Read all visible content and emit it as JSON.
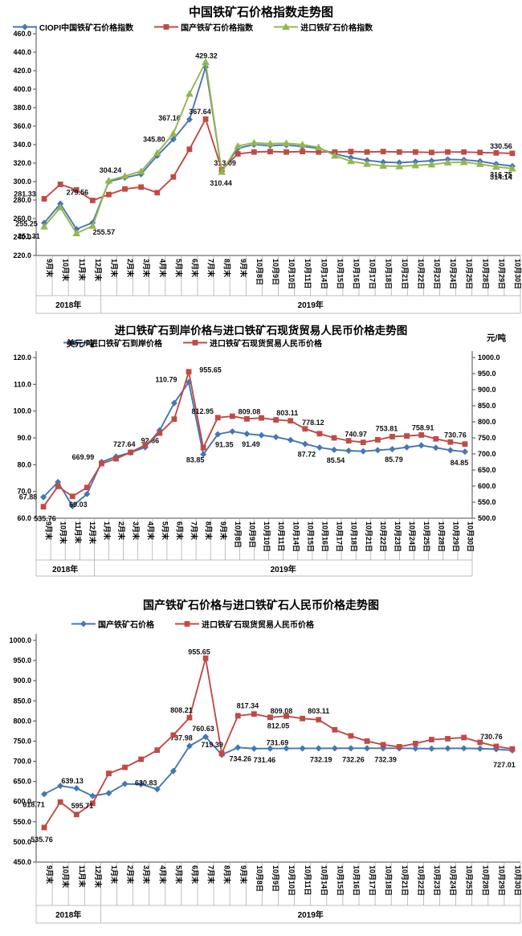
{
  "chart_data": [
    {
      "type": "line",
      "title": "中国铁矿石价格指数走势图",
      "categories": [
        "9月末",
        "10月末",
        "11月末",
        "12月末",
        "1月末",
        "2月末",
        "3月末",
        "4月末",
        "5月末",
        "6月末",
        "7月末",
        "8月末",
        "9月末",
        "10月8日",
        "10月9日",
        "10月10日",
        "10月11日",
        "10月14日",
        "10月15日",
        "10月16日",
        "10月17日",
        "10月18日",
        "10月21日",
        "10月22日",
        "10月23日",
        "10月24日",
        "10月25日",
        "10月28日",
        "10月29日",
        "10月30日"
      ],
      "year_groups": [
        {
          "label": "2018年",
          "count": 4
        },
        {
          "label": "2019年",
          "count": 26
        }
      ],
      "y_axis": {
        "min": 220,
        "max": 460,
        "step": 20
      },
      "grid": false,
      "legend_position": "top",
      "series": [
        {
          "name": "CIOPI中国铁矿石价格指数",
          "color": "#4576B5",
          "marker": "diamond",
          "axis": "left",
          "values": [
            255.25,
            276,
            248.5,
            255.57,
            300,
            304.24,
            308,
            328,
            345.8,
            367.16,
            424,
            311,
            336,
            340,
            339,
            339.5,
            338,
            336,
            330,
            326,
            323,
            321,
            320.5,
            321.5,
            322.5,
            324,
            323.5,
            322,
            319,
            316.75
          ],
          "point_labels": [
            {
              "i": 0,
              "t": "255.25",
              "dx": -22,
              "dy": 1
            },
            {
              "i": 3,
              "t": "255.57",
              "dx": 14,
              "dy": 12
            },
            {
              "i": 5,
              "t": "304.24",
              "dx": -18,
              "dy": -9
            },
            {
              "i": 8,
              "t": "345.80",
              "dx": -24,
              "dy": 0
            },
            {
              "i": 9,
              "t": "367.16",
              "dx": -25,
              "dy": -2
            },
            {
              "i": 29,
              "t": "316.75",
              "dx": -14,
              "dy": 11
            }
          ]
        },
        {
          "name": "国产铁矿石价格指数",
          "color": "#BF4B47",
          "marker": "square",
          "axis": "left",
          "values": [
            281.33,
            297,
            291,
            279.56,
            286,
            292,
            294,
            288,
            305,
            335,
            367.64,
            313.09,
            330,
            332,
            332.5,
            332,
            332.5,
            332,
            332,
            332.5,
            332,
            332.5,
            332,
            332,
            331.5,
            332,
            332,
            331.5,
            331,
            330.56
          ],
          "point_labels": [
            {
              "i": 0,
              "t": "281.33",
              "dx": -24,
              "dy": -6
            },
            {
              "i": 3,
              "t": "279.56",
              "dx": -19,
              "dy": -10
            },
            {
              "i": 10,
              "t": "367.64",
              "dx": -7,
              "dy": -9
            },
            {
              "i": 11,
              "t": "313.09",
              "dx": 4,
              "dy": -8
            },
            {
              "i": 29,
              "t": "330.56",
              "dx": -14,
              "dy": -9
            }
          ]
        },
        {
          "name": "进口铁矿石价格指数",
          "color": "#94B64E",
          "marker": "triangle",
          "axis": "left",
          "values": [
            251.31,
            272,
            244,
            252,
            301,
            306,
            311,
            331,
            352,
            395,
            429.32,
            310.44,
            338.5,
            342,
            341,
            341.5,
            340,
            337,
            328,
            322,
            319,
            317,
            316.5,
            317.5,
            318.5,
            320.5,
            321,
            319,
            316,
            314.14
          ],
          "point_labels": [
            {
              "i": 0,
              "t": "251.31",
              "dx": -19,
              "dy": 12
            },
            {
              "i": 10,
              "t": "429.32",
              "dx": 1,
              "dy": -8
            },
            {
              "i": 11,
              "t": "310.44",
              "dx": -1,
              "dy": 14
            },
            {
              "i": 29,
              "t": "314.14",
              "dx": -14,
              "dy": 11
            }
          ]
        }
      ]
    },
    {
      "type": "line",
      "title": "进口铁矿石到岸价格与进口铁矿石现货贸易人民币价格走势图",
      "left_axis_unit": "美元/吨",
      "right_axis_unit": "元/吨",
      "categories": [
        "9月末",
        "10月末",
        "11月末",
        "12月末",
        "1月末",
        "2月末",
        "3月末",
        "4月末",
        "5月末",
        "6月末",
        "7月末",
        "8月末",
        "9月末",
        "10月8日",
        "10月9日",
        "10月10日",
        "10月11日",
        "10月14日",
        "10月15日",
        "10月16日",
        "10月17日",
        "10月18日",
        "10月21日",
        "10月22日",
        "10月23日",
        "10月24日",
        "10月25日",
        "10月28日",
        "10月29日",
        "10月30日"
      ],
      "year_groups": [
        {
          "label": "2018年",
          "count": 4
        },
        {
          "label": "2019年",
          "count": 26
        }
      ],
      "y_axis": {
        "min": 60,
        "max": 120,
        "step": 10
      },
      "y2_axis": {
        "min": 500,
        "max": 1000,
        "step": 50
      },
      "grid": false,
      "legend_position": "top",
      "series": [
        {
          "name": "进口铁矿石到岸价格",
          "color": "#4576B5",
          "marker": "diamond",
          "axis": "left",
          "values": [
            67.88,
            73.5,
            64.5,
            69.03,
            81,
            83,
            84.5,
            86.5,
            92.86,
            103,
            110.79,
            83.85,
            91.35,
            92.4,
            91.49,
            91,
            90.3,
            89.2,
            87.72,
            86.4,
            85.54,
            85.2,
            85,
            85.4,
            85.79,
            86.5,
            87.2,
            86.3,
            85.4,
            84.85
          ],
          "point_labels": [
            {
              "i": 0,
              "t": "67.88",
              "dx": -19,
              "dy": 0
            },
            {
              "i": 3,
              "t": "69.03",
              "dx": -11,
              "dy": 13
            },
            {
              "i": 8,
              "t": "92.86",
              "dx": -12,
              "dy": 13
            },
            {
              "i": 10,
              "t": "110.79",
              "dx": -28,
              "dy": -3
            },
            {
              "i": 11,
              "t": "83.85",
              "dx": -10,
              "dy": 7
            },
            {
              "i": 12,
              "t": "91.35",
              "dx": 8,
              "dy": 13
            },
            {
              "i": 14,
              "t": "91.49",
              "dx": 5,
              "dy": 13
            },
            {
              "i": 18,
              "t": "87.72",
              "dx": 2,
              "dy": 13
            },
            {
              "i": 20,
              "t": "85.54",
              "dx": 2,
              "dy": 13
            },
            {
              "i": 24,
              "t": "85.79",
              "dx": 2,
              "dy": 13
            },
            {
              "i": 29,
              "t": "84.85",
              "dx": -7,
              "dy": 14
            }
          ]
        },
        {
          "name": "进口铁矿石现货贸易人民币价格",
          "color": "#BF4B47",
          "marker": "square",
          "axis": "right",
          "values": [
            535.76,
            599,
            568,
            595.71,
            669.99,
            685,
            705,
            727.64,
            765,
            808.21,
            955.65,
            719.39,
            812.95,
            817.34,
            809.08,
            812.05,
            806,
            803.11,
            778.12,
            763,
            750,
            740.97,
            736,
            744,
            753.81,
            756,
            758.91,
            747,
            737,
            730.76
          ],
          "point_labels": [
            {
              "i": 0,
              "t": "535.76",
              "dx": 2,
              "dy": 15
            },
            {
              "i": 4,
              "t": "669.99",
              "dx": -23,
              "dy": -8
            },
            {
              "i": 7,
              "t": "727.64",
              "dx": -26,
              "dy": -1
            },
            {
              "i": 10,
              "t": "955.65",
              "dx": 27,
              "dy": -2
            },
            {
              "i": 12,
              "t": "812.95",
              "dx": -19,
              "dy": -8
            },
            {
              "i": 14,
              "t": "809.08",
              "dx": 3,
              "dy": -9
            },
            {
              "i": 17,
              "t": "803.11",
              "dx": -4,
              "dy": -10
            },
            {
              "i": 18,
              "t": "778.12",
              "dx": 10,
              "dy": -8
            },
            {
              "i": 21,
              "t": "740.97",
              "dx": 9,
              "dy": -8
            },
            {
              "i": 24,
              "t": "753.81",
              "dx": -7,
              "dy": -10
            },
            {
              "i": 26,
              "t": "758.91",
              "dx": 2,
              "dy": -9
            },
            {
              "i": 29,
              "t": "730.76",
              "dx": -12,
              "dy": -11
            }
          ]
        }
      ]
    },
    {
      "type": "line",
      "title": "国产铁矿石价格与进口铁矿石人民币价格走势图",
      "categories": [
        "9月末",
        "10月末",
        "11月末",
        "12月末",
        "1月末",
        "2月末",
        "3月末",
        "4月末",
        "5月末",
        "6月末",
        "7月末",
        "8月末",
        "9月末",
        "10月8日",
        "10月9日",
        "10月10日",
        "10月11日",
        "10月14日",
        "10月15日",
        "10月16日",
        "10月17日",
        "10月18日",
        "10月21日",
        "10月22日",
        "10月23日",
        "10月24日",
        "10月25日",
        "10月28日",
        "10月29日",
        "10月30日"
      ],
      "year_groups": [
        {
          "label": "2018年",
          "count": 4
        },
        {
          "label": "2019年",
          "count": 26
        }
      ],
      "y_axis": {
        "min": 450,
        "max": 1000,
        "step": 50
      },
      "grid": false,
      "legend_position": "top",
      "series": [
        {
          "name": "国产铁矿石价格",
          "color": "#4576B5",
          "marker": "diamond",
          "axis": "left",
          "values": [
            618.71,
            639.13,
            633,
            614,
            621,
            644,
            643,
            630.83,
            676,
            737.98,
            760.63,
            716,
            734.26,
            731.46,
            731.69,
            731.9,
            732,
            732.19,
            732.2,
            732.26,
            732.3,
            732.39,
            732.3,
            731.8,
            731.5,
            732,
            732.2,
            731.5,
            730,
            727.01
          ],
          "point_labels": [
            {
              "i": 0,
              "t": "618.71",
              "dx": -13,
              "dy": 13
            },
            {
              "i": 1,
              "t": "639.13",
              "dx": 15,
              "dy": -6
            },
            {
              "i": 7,
              "t": "630.83",
              "dx": -14,
              "dy": -8
            },
            {
              "i": 9,
              "t": "737.98",
              "dx": -10,
              "dy": -10
            },
            {
              "i": 10,
              "t": "760.63",
              "dx": -3,
              "dy": -10
            },
            {
              "i": 12,
              "t": "734.26",
              "dx": 3,
              "dy": 14
            },
            {
              "i": 13,
              "t": "731.46",
              "dx": 13,
              "dy": 14
            },
            {
              "i": 14,
              "t": "731.69",
              "dx": 9,
              "dy": -7
            },
            {
              "i": 17,
              "t": "732.19",
              "dx": 3,
              "dy": 14
            },
            {
              "i": 19,
              "t": "732.26",
              "dx": 3,
              "dy": 14
            },
            {
              "i": 21,
              "t": "732.39",
              "dx": 3,
              "dy": 14
            },
            {
              "i": 29,
              "t": "727.01",
              "dx": -10,
              "dy": 18
            }
          ]
        },
        {
          "name": "进口铁矿石现货贸易人民币价格",
          "color": "#BF4B47",
          "marker": "square",
          "axis": "left",
          "values": [
            535.76,
            599,
            568,
            595.71,
            669.99,
            685,
            705,
            727.64,
            765,
            808.21,
            955.65,
            719.39,
            812.95,
            817.34,
            809.08,
            812.05,
            806,
            803.11,
            778.12,
            763,
            750,
            740.97,
            736,
            744,
            753.81,
            756,
            758.91,
            747,
            737,
            730.76
          ],
          "point_labels": [
            {
              "i": 0,
              "t": "535.76",
              "dx": -3,
              "dy": 15
            },
            {
              "i": 3,
              "t": "595.71",
              "dx": -13,
              "dy": 3
            },
            {
              "i": 9,
              "t": "808.21",
              "dx": -10,
              "dy": -9
            },
            {
              "i": 10,
              "t": "955.65",
              "dx": -8,
              "dy": -8
            },
            {
              "i": 11,
              "t": "719.39",
              "dx": -12,
              "dy": -11
            },
            {
              "i": 13,
              "t": "817.34",
              "dx": -8,
              "dy": -10
            },
            {
              "i": 14,
              "t": "809.08",
              "dx": 14,
              "dy": -8
            },
            {
              "i": 15,
              "t": "812.05",
              "dx": -10,
              "dy": 12
            },
            {
              "i": 17,
              "t": "803.11",
              "dx": 0,
              "dy": -11
            },
            {
              "i": 29,
              "t": "730.76",
              "dx": -26,
              "dy": -15
            }
          ]
        }
      ]
    }
  ],
  "colors": {
    "axis_line": "#4d4d4d",
    "grid_cell": "#a6a6a6",
    "label_text": "#000000"
  }
}
